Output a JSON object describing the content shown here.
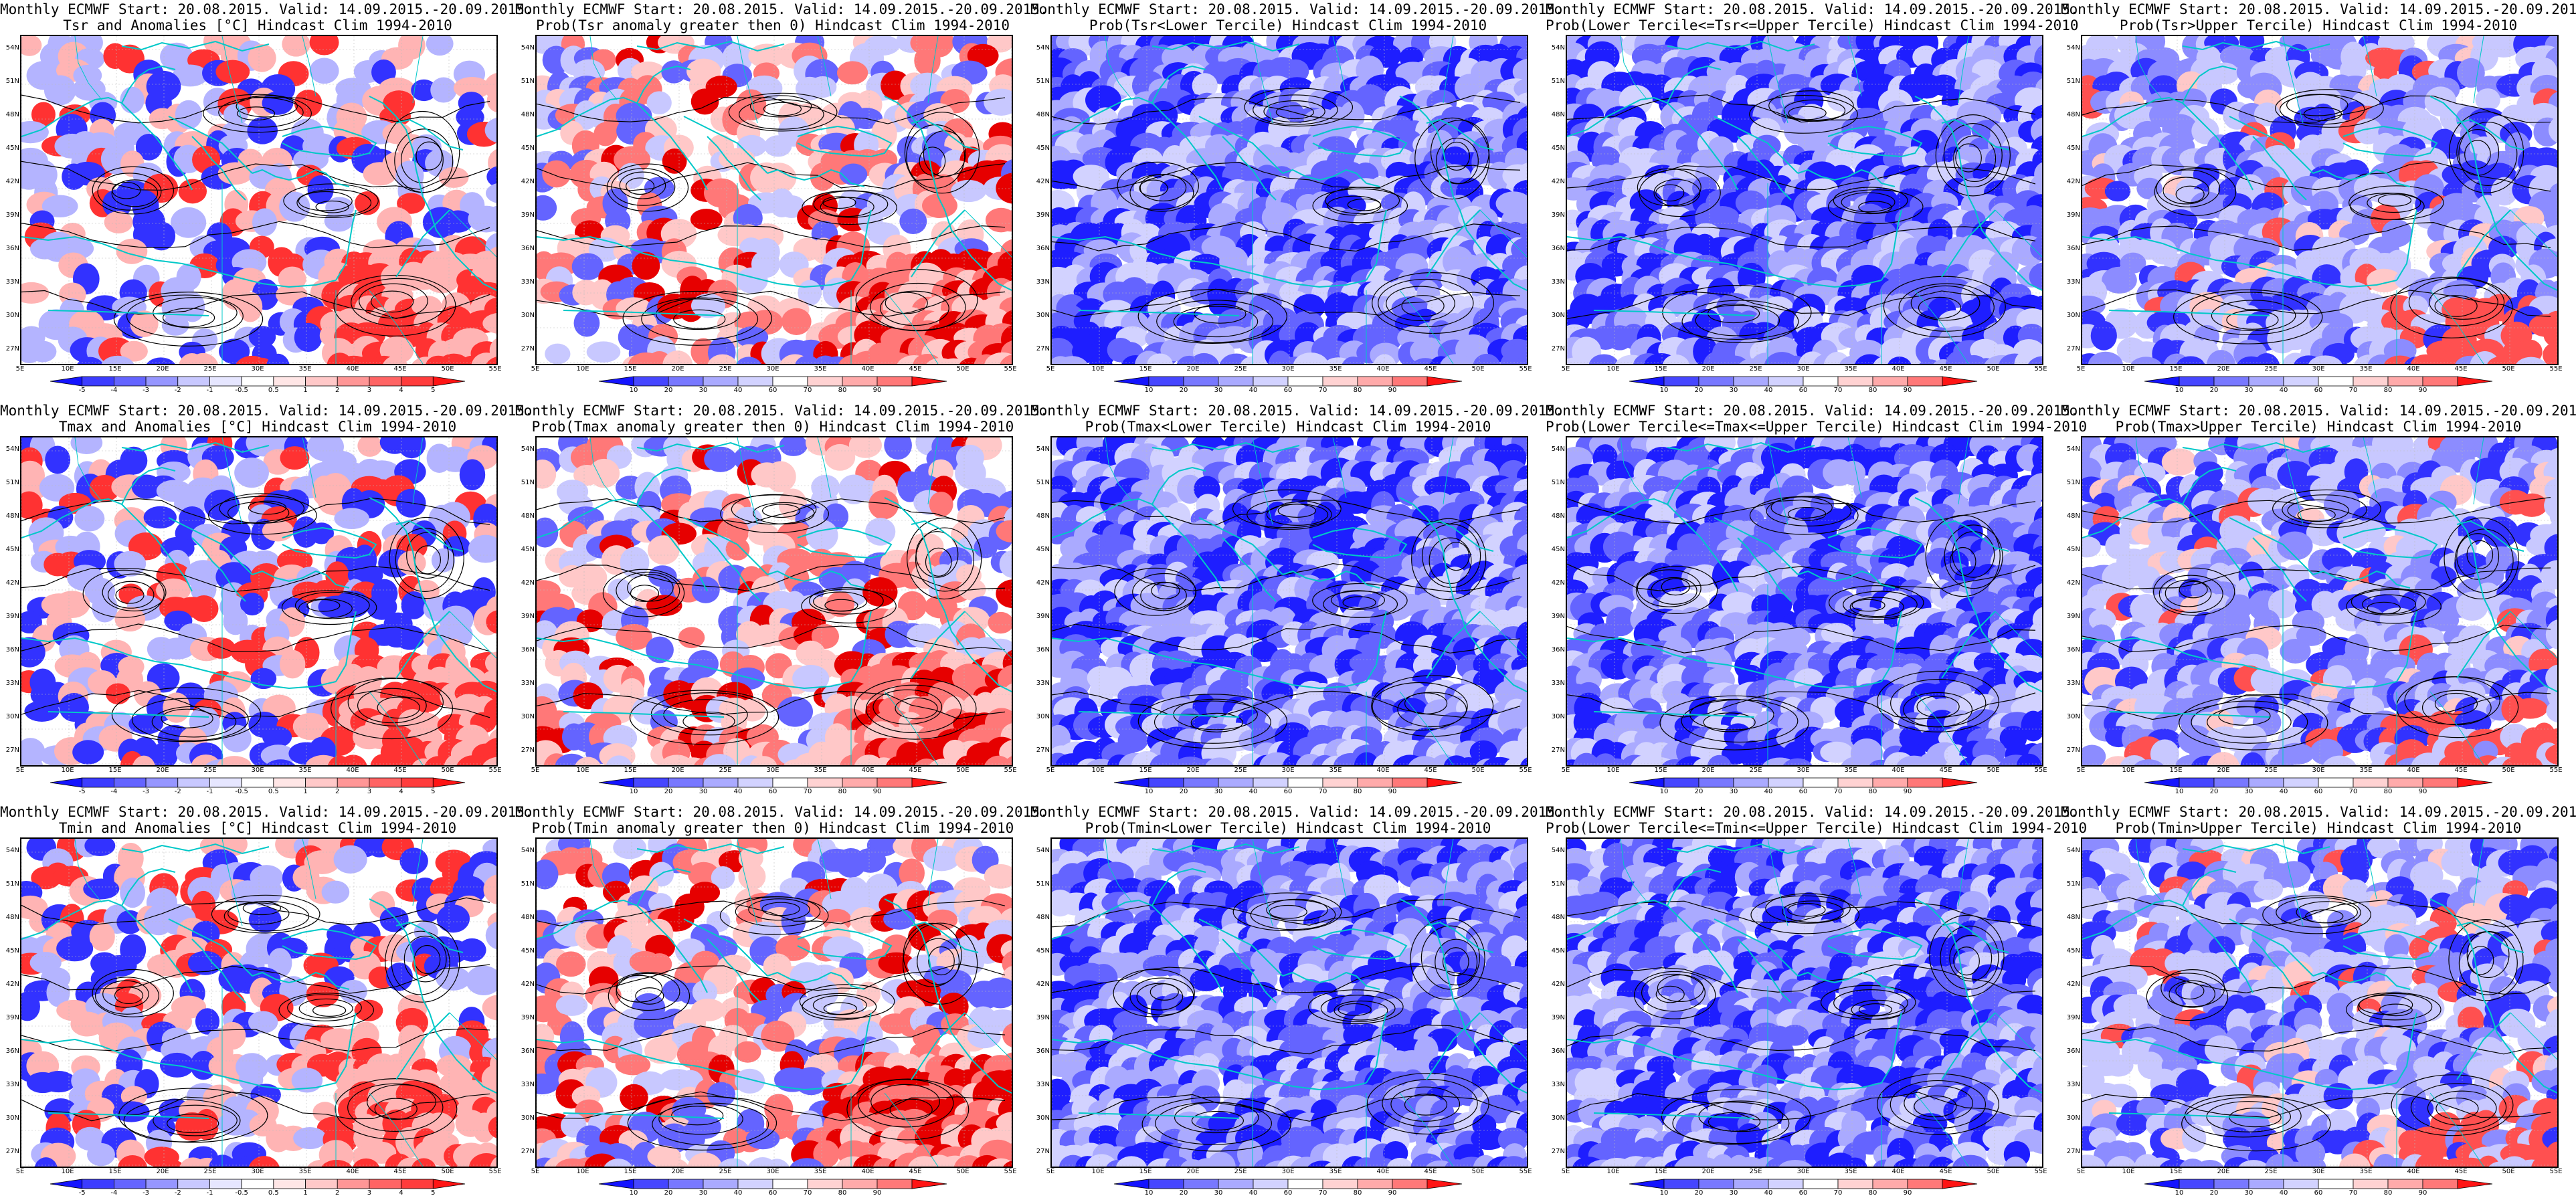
{
  "header_line": "Monthly ECMWF Start: 20.08.2015. Valid: 14.09.2015.-20.09.2015.",
  "lat_labels": [
    "54N",
    "51N",
    "48N",
    "45N",
    "42N",
    "39N",
    "36N",
    "33N",
    "30N",
    "27N"
  ],
  "lon_labels": [
    "5E",
    "10E",
    "15E",
    "20E",
    "25E",
    "30E",
    "35E",
    "40E",
    "45E",
    "50E",
    "55E"
  ],
  "colorbars": {
    "anom": {
      "ticks": [
        "-5",
        "-4",
        "-3",
        "-2",
        "-1",
        "-0.5",
        "0.5",
        "1",
        "2",
        "3",
        "4",
        "5"
      ],
      "colors": [
        "#1414ff",
        "#3c3cff",
        "#6464ff",
        "#9696ff",
        "#c8c8ff",
        "#e6e6ff",
        "#ffffff",
        "#ffe6e6",
        "#ffc8c8",
        "#ff9696",
        "#ff6464",
        "#ff3c3c",
        "#ff1414"
      ]
    },
    "prob": {
      "ticks": [
        "10",
        "20",
        "30",
        "40",
        "60",
        "70",
        "80",
        "90"
      ],
      "colors": [
        "#1414ff",
        "#4646ff",
        "#7878ff",
        "#aaaaff",
        "#d2d2ff",
        "#ffffff",
        "#ffd2d2",
        "#ffaaaa",
        "#ff7878",
        "#ff1414"
      ]
    }
  },
  "colors": {
    "coast": "#00c8c8",
    "contour": "#000000",
    "red": "#ff3232",
    "blue": "#3232ff"
  },
  "panels": [
    {
      "id": "tsr-anom",
      "title": "Tsr and Anomalies [°C] Hindcast Clim 1994-2010",
      "cbar": "anom",
      "field": "anom",
      "seed": 11
    },
    {
      "id": "tsr-prob-pos",
      "title": "Prob(Tsr anomaly greater then 0) Hindcast Clim 1994-2010",
      "cbar": "prob",
      "field": "probpos",
      "seed": 12
    },
    {
      "id": "tsr-prob-lower",
      "title": "Prob(Tsr<Lower Tercile) Hindcast Clim 1994-2010",
      "cbar": "prob",
      "field": "blue",
      "seed": 13
    },
    {
      "id": "tsr-prob-middle",
      "title": "Prob(Lower Tercile<=Tsr<=Upper Tercile) Hindcast Clim 1994-2010",
      "cbar": "prob",
      "field": "blue",
      "seed": 14
    },
    {
      "id": "tsr-prob-upper",
      "title": "Prob(Tsr>Upper Tercile) Hindcast Clim 1994-2010",
      "cbar": "prob",
      "field": "mixed",
      "seed": 15
    },
    {
      "id": "tmax-anom",
      "title": "Tmax and Anomalies [°C] Hindcast Clim 1994-2010",
      "cbar": "anom",
      "field": "anom",
      "seed": 21
    },
    {
      "id": "tmax-prob-pos",
      "title": "Prob(Tmax anomaly greater then 0) Hindcast Clim 1994-2010",
      "cbar": "prob",
      "field": "probpos",
      "seed": 22
    },
    {
      "id": "tmax-prob-lower",
      "title": "Prob(Tmax<Lower Tercile) Hindcast Clim 1994-2010",
      "cbar": "prob",
      "field": "blue",
      "seed": 23
    },
    {
      "id": "tmax-prob-middle",
      "title": "Prob(Lower Tercile<=Tmax<=Upper Tercile) Hindcast Clim 1994-2010",
      "cbar": "prob",
      "field": "blue",
      "seed": 24
    },
    {
      "id": "tmax-prob-upper",
      "title": "Prob(Tmax>Upper Tercile) Hindcast Clim 1994-2010",
      "cbar": "prob",
      "field": "mixed",
      "seed": 25
    },
    {
      "id": "tmin-anom",
      "title": "Tmin and Anomalies [°C] Hindcast Clim 1994-2010",
      "cbar": "anom",
      "field": "anom",
      "seed": 31
    },
    {
      "id": "tmin-prob-pos",
      "title": "Prob(Tmin anomaly greater then 0) Hindcast Clim 1994-2010",
      "cbar": "prob",
      "field": "probpos",
      "seed": 32
    },
    {
      "id": "tmin-prob-lower",
      "title": "Prob(Tmin<Lower Tercile) Hindcast Clim 1994-2010",
      "cbar": "prob",
      "field": "blue",
      "seed": 33
    },
    {
      "id": "tmin-prob-middle",
      "title": "Prob(Lower Tercile<=Tmin<=Upper Tercile) Hindcast Clim 1994-2010",
      "cbar": "prob",
      "field": "blue",
      "seed": 34
    },
    {
      "id": "tmin-prob-upper",
      "title": "Prob(Tmin>Upper Tercile) Hindcast Clim 1994-2010",
      "cbar": "prob",
      "field": "mixed",
      "seed": 35
    }
  ]
}
